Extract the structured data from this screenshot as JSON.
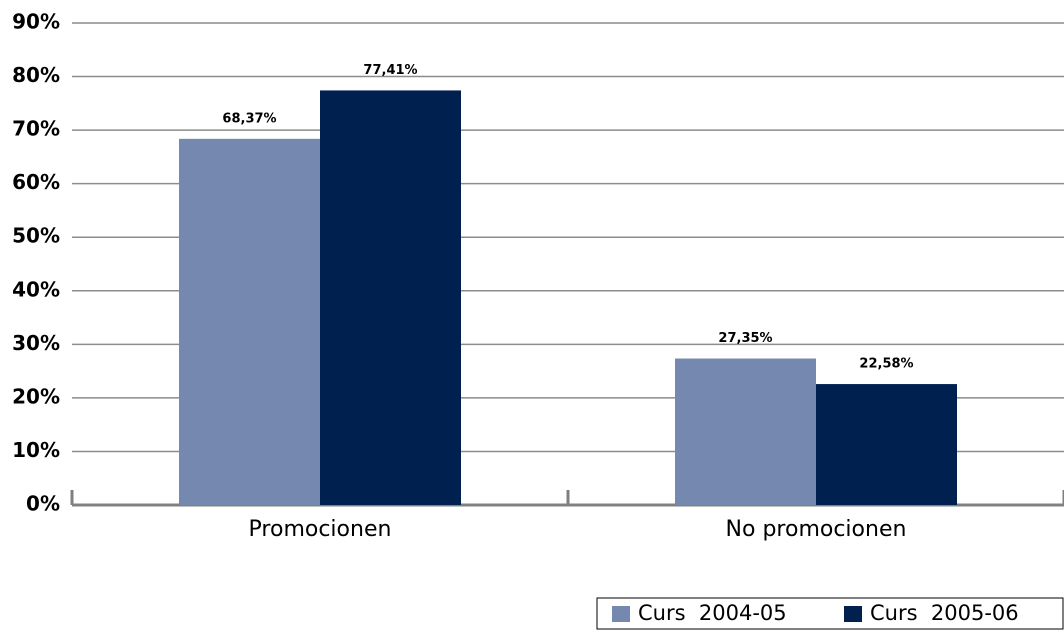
{
  "chart_data": {
    "type": "bar",
    "categories": [
      "Promocionen",
      "No promocionen"
    ],
    "series": [
      {
        "name": "Curs  2004-05",
        "color": "#7589b0",
        "values": [
          68.37,
          27.35
        ],
        "value_labels": [
          "68,37%",
          "27,35%"
        ]
      },
      {
        "name": "Curs  2005-06",
        "color": "#00204f",
        "values": [
          77.41,
          22.58
        ],
        "value_labels": [
          "77,41%",
          "22,58%"
        ]
      }
    ],
    "ylim": [
      0,
      90
    ],
    "yticks": [
      {
        "value": 0,
        "label": "0%"
      },
      {
        "value": 10,
        "label": "10%"
      },
      {
        "value": 20,
        "label": "20%"
      },
      {
        "value": 30,
        "label": "30%"
      },
      {
        "value": 40,
        "label": "40%"
      },
      {
        "value": 50,
        "label": "50%"
      },
      {
        "value": 60,
        "label": "60%"
      },
      {
        "value": 70,
        "label": "70%"
      },
      {
        "value": 80,
        "label": "80%"
      },
      {
        "value": 90,
        "label": "90%"
      }
    ],
    "grid": true,
    "legend": "bottom-right"
  }
}
